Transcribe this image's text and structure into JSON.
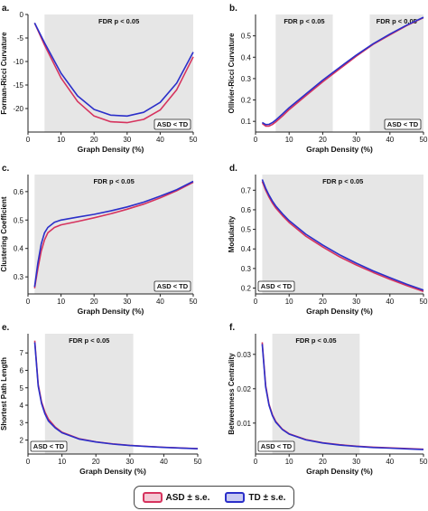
{
  "colors": {
    "asd": "#d6335e",
    "td": "#2b2fc9",
    "shade": "#e6e6e6",
    "asd_fill": "#f4c9d5",
    "td_fill": "#c9cbf2"
  },
  "legend": {
    "asd_label": "ASD ± s.e.",
    "td_label": "TD ± s.e."
  },
  "chart_data": [
    {
      "type": "line",
      "panel_label": "a.",
      "title": "",
      "xlabel": "Graph Density (%)",
      "ylabel": "Forman-Ricci Curvature",
      "xlim": [
        0,
        50
      ],
      "ylim": [
        -25,
        0
      ],
      "xticks": [
        0,
        10,
        20,
        30,
        40,
        50
      ],
      "yticks": [
        0,
        -5,
        -10,
        -15,
        -20
      ],
      "shade": [
        {
          "from": 5,
          "to": 50,
          "label": "FDR p < 0.05"
        }
      ],
      "annotation": "ASD < TD",
      "annotation_pos": "bottom-right",
      "series": [
        {
          "name": "ASD ± s.e.",
          "x": [
            2,
            5,
            10,
            15,
            20,
            25,
            30,
            35,
            40,
            45,
            50
          ],
          "y": [
            -1.8,
            -6.5,
            -13.5,
            -18.5,
            -21.6,
            -22.8,
            -23.0,
            -22.3,
            -20.3,
            -16.0,
            -9.0
          ]
        },
        {
          "name": "TD ± s.e.",
          "x": [
            2,
            5,
            10,
            15,
            20,
            25,
            30,
            35,
            40,
            45,
            50
          ],
          "y": [
            -1.8,
            -6.0,
            -12.5,
            -17.3,
            -20.2,
            -21.4,
            -21.6,
            -20.8,
            -18.7,
            -14.6,
            -8.0
          ]
        }
      ]
    },
    {
      "type": "line",
      "panel_label": "b.",
      "title": "",
      "xlabel": "Graph Density (%)",
      "ylabel": "Ollivier-Ricci Curvature",
      "xlim": [
        0,
        50
      ],
      "ylim": [
        0.05,
        0.6
      ],
      "xticks": [
        0,
        10,
        20,
        30,
        40,
        50
      ],
      "yticks": [
        0.1,
        0.2,
        0.3,
        0.4,
        0.5
      ],
      "shade": [
        {
          "from": 6,
          "to": 23,
          "label": "FDR p < 0.05"
        },
        {
          "from": 34,
          "to": 50,
          "label": "FDR p < 0.05"
        }
      ],
      "annotation": "ASD < TD",
      "annotation_pos": "bottom-right",
      "series": [
        {
          "name": "ASD ± s.e.",
          "x": [
            2,
            3,
            4,
            5,
            6,
            8,
            10,
            15,
            20,
            25,
            30,
            35,
            40,
            45,
            50
          ],
          "y": [
            0.09,
            0.078,
            0.078,
            0.085,
            0.097,
            0.125,
            0.155,
            0.22,
            0.285,
            0.345,
            0.405,
            0.46,
            0.505,
            0.548,
            0.585
          ]
        },
        {
          "name": "TD ± s.e.",
          "x": [
            2,
            3,
            4,
            5,
            6,
            8,
            10,
            15,
            20,
            25,
            30,
            35,
            40,
            45,
            50
          ],
          "y": [
            0.095,
            0.085,
            0.086,
            0.094,
            0.106,
            0.134,
            0.164,
            0.228,
            0.293,
            0.352,
            0.41,
            0.463,
            0.508,
            0.55,
            0.587
          ]
        }
      ]
    },
    {
      "type": "line",
      "panel_label": "c.",
      "title": "",
      "xlabel": "Graph Density (%)",
      "ylabel": "Clustering Coefficient",
      "xlim": [
        0,
        50
      ],
      "ylim": [
        0.24,
        0.66
      ],
      "xticks": [
        0,
        10,
        20,
        30,
        40,
        50
      ],
      "yticks": [
        0.3,
        0.4,
        0.5,
        0.6
      ],
      "shade": [
        {
          "from": 2,
          "to": 50,
          "label": "FDR p < 0.05"
        }
      ],
      "annotation": "ASD < TD",
      "annotation_pos": "bottom-right",
      "series": [
        {
          "name": "ASD ± s.e.",
          "x": [
            2,
            3,
            4,
            5,
            6,
            8,
            10,
            15,
            20,
            25,
            30,
            35,
            40,
            45,
            50
          ],
          "y": [
            0.26,
            0.33,
            0.39,
            0.43,
            0.455,
            0.474,
            0.483,
            0.495,
            0.508,
            0.522,
            0.538,
            0.556,
            0.578,
            0.603,
            0.633
          ]
        },
        {
          "name": "TD ± s.e.",
          "x": [
            2,
            3,
            4,
            5,
            6,
            8,
            10,
            15,
            20,
            25,
            30,
            35,
            40,
            45,
            50
          ],
          "y": [
            0.265,
            0.35,
            0.415,
            0.455,
            0.474,
            0.492,
            0.5,
            0.51,
            0.52,
            0.532,
            0.546,
            0.563,
            0.584,
            0.607,
            0.636
          ]
        }
      ]
    },
    {
      "type": "line",
      "panel_label": "d.",
      "title": "",
      "xlabel": "Graph Density (%)",
      "ylabel": "Modularity",
      "xlim": [
        0,
        50
      ],
      "ylim": [
        0.17,
        0.78
      ],
      "xticks": [
        0,
        10,
        20,
        30,
        40,
        50
      ],
      "yticks": [
        0.2,
        0.3,
        0.4,
        0.5,
        0.6,
        0.7
      ],
      "shade": [
        {
          "from": 2,
          "to": 50,
          "label": "FDR p < 0.05"
        }
      ],
      "annotation": "ASD < TD",
      "annotation_pos": "bottom-left",
      "series": [
        {
          "name": "ASD ± s.e.",
          "x": [
            2,
            3,
            4,
            5,
            6,
            8,
            10,
            15,
            20,
            25,
            30,
            35,
            40,
            45,
            50
          ],
          "y": [
            0.745,
            0.7,
            0.665,
            0.635,
            0.61,
            0.57,
            0.535,
            0.465,
            0.41,
            0.36,
            0.318,
            0.28,
            0.245,
            0.213,
            0.183
          ]
        },
        {
          "name": "TD ± s.e.",
          "x": [
            2,
            3,
            4,
            5,
            6,
            8,
            10,
            15,
            20,
            25,
            30,
            35,
            40,
            45,
            50
          ],
          "y": [
            0.755,
            0.71,
            0.675,
            0.645,
            0.62,
            0.58,
            0.545,
            0.475,
            0.42,
            0.37,
            0.327,
            0.288,
            0.253,
            0.22,
            0.19
          ]
        }
      ]
    },
    {
      "type": "line",
      "panel_label": "e.",
      "title": "",
      "xlabel": "Graph Density (%)",
      "ylabel": "Shortest Path Length",
      "xlim": [
        0,
        50
      ],
      "ylim": [
        1.2,
        8.1
      ],
      "xticks": [
        0,
        10,
        20,
        30,
        40,
        50
      ],
      "yticks": [
        2,
        3,
        4,
        5,
        6,
        7
      ],
      "shade": [
        {
          "from": 5,
          "to": 31,
          "label": "FDR p < 0.05"
        }
      ],
      "annotation": "ASD < TD",
      "annotation_pos": "bottom-left",
      "series": [
        {
          "name": "ASD ± s.e.",
          "x": [
            2,
            3,
            4,
            5,
            6,
            8,
            10,
            15,
            20,
            25,
            30,
            35,
            40,
            45,
            50
          ],
          "y": [
            7.7,
            5.2,
            4.2,
            3.6,
            3.2,
            2.75,
            2.45,
            2.08,
            1.9,
            1.78,
            1.7,
            1.64,
            1.59,
            1.55,
            1.51
          ]
        },
        {
          "name": "TD ± s.e.",
          "x": [
            2,
            3,
            4,
            5,
            6,
            8,
            10,
            15,
            20,
            25,
            30,
            35,
            40,
            45,
            50
          ],
          "y": [
            7.6,
            5.1,
            4.1,
            3.5,
            3.1,
            2.7,
            2.42,
            2.06,
            1.89,
            1.77,
            1.69,
            1.63,
            1.58,
            1.54,
            1.5
          ]
        }
      ]
    },
    {
      "type": "line",
      "panel_label": "f.",
      "title": "",
      "xlabel": "Graph Density (%)",
      "ylabel": "Betweenness Centrality",
      "xlim": [
        0,
        50
      ],
      "ylim": [
        0.001,
        0.036
      ],
      "xticks": [
        0,
        10,
        20,
        30,
        40,
        50
      ],
      "yticks": [
        0.01,
        0.02,
        0.03
      ],
      "shade": [
        {
          "from": 5,
          "to": 31,
          "label": "FDR p < 0.05"
        }
      ],
      "annotation": "ASD < TD",
      "annotation_pos": "bottom-left",
      "series": [
        {
          "name": "ASD ± s.e.",
          "x": [
            2,
            3,
            4,
            5,
            6,
            8,
            10,
            15,
            20,
            25,
            30,
            35,
            40,
            45,
            50
          ],
          "y": [
            0.0335,
            0.021,
            0.0155,
            0.0125,
            0.0105,
            0.0082,
            0.0069,
            0.0052,
            0.0043,
            0.0037,
            0.0033,
            0.003,
            0.0028,
            0.0026,
            0.0024
          ]
        },
        {
          "name": "TD ± s.e.",
          "x": [
            2,
            3,
            4,
            5,
            6,
            8,
            10,
            15,
            20,
            25,
            30,
            35,
            40,
            45,
            50
          ],
          "y": [
            0.033,
            0.0205,
            0.0152,
            0.0122,
            0.0103,
            0.0081,
            0.0068,
            0.0051,
            0.0042,
            0.0036,
            0.0032,
            0.0029,
            0.0027,
            0.0025,
            0.0023
          ]
        }
      ]
    }
  ]
}
